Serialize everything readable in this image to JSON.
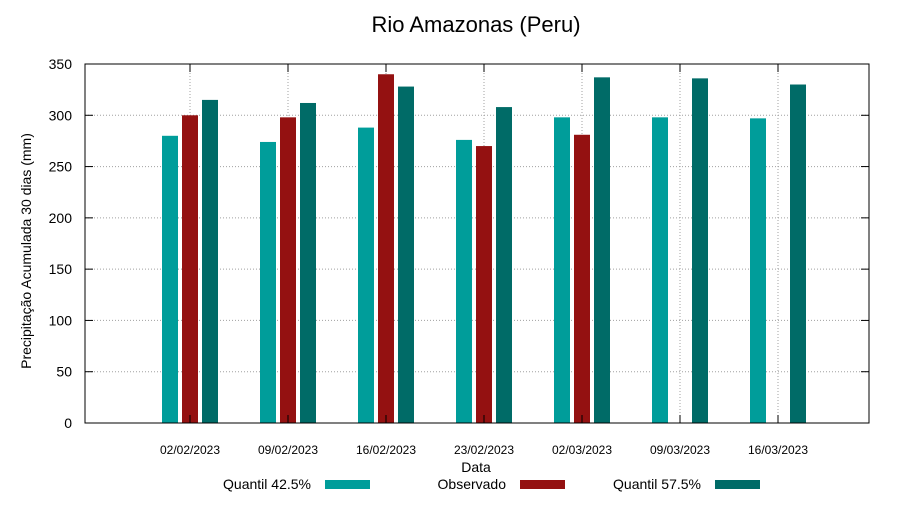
{
  "chart_data": {
    "type": "bar",
    "title": "Rio Amazonas (Peru)",
    "xlabel": "Data",
    "ylabel": "Precipitação Acumulada 30 dias (mm)",
    "ylim": [
      0,
      350
    ],
    "yticks": [
      0,
      50,
      100,
      150,
      200,
      250,
      300,
      350
    ],
    "grid": true,
    "legend_position": "bottom",
    "categories": [
      "02/02/2023",
      "09/02/2023",
      "16/02/2023",
      "23/02/2023",
      "02/03/2023",
      "09/03/2023",
      "16/03/2023"
    ],
    "series": [
      {
        "name": "Quantil 42.5%",
        "color": "#009d9a",
        "values": [
          280,
          274,
          288,
          276,
          298,
          298,
          297
        ]
      },
      {
        "name": "Observado",
        "color": "#941111",
        "values": [
          300,
          298,
          340,
          270,
          281,
          null,
          null
        ]
      },
      {
        "name": "Quantil 57.5%",
        "color": "#006b67",
        "values": [
          315,
          312,
          328,
          308,
          337,
          336,
          330
        ]
      }
    ]
  }
}
